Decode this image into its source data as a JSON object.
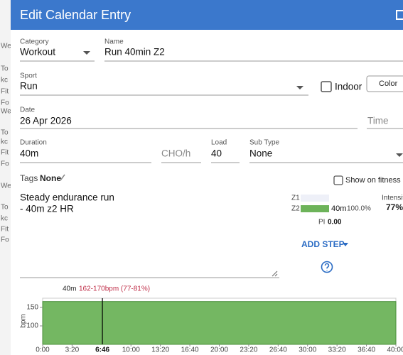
{
  "background": {
    "fragments": [
      "We",
      "To",
      "kc",
      "Fit",
      "Fo",
      "We",
      "To",
      "kc",
      "Fit",
      "Fo",
      "We",
      "To",
      "kc",
      "Fit",
      "Fo"
    ]
  },
  "dialog": {
    "title": "Edit Calendar Entry"
  },
  "form": {
    "category": {
      "label": "Category",
      "value": "Workout"
    },
    "name": {
      "label": "Name",
      "value": "Run 40min Z2"
    },
    "sport": {
      "label": "Sport",
      "value": "Run"
    },
    "indoor": {
      "label": "Indoor"
    },
    "color_button": "Color",
    "date": {
      "label": "Date",
      "value": "26 Apr 2026"
    },
    "time": {
      "placeholder": "Time"
    },
    "duration": {
      "label": "Duration",
      "value": "40m"
    },
    "cho": {
      "placeholder": "CHO/h"
    },
    "load": {
      "label": "Load",
      "value": "40"
    },
    "sub_type": {
      "label": "Sub Type",
      "value": "None"
    },
    "tags": {
      "label": "Tags",
      "value": "None"
    },
    "show_on_fitness": "Show on fitness lin",
    "description": [
      "Steady endurance run",
      "- 40m z2 HR"
    ]
  },
  "zones": {
    "rows": [
      {
        "name": "Z1"
      },
      {
        "name": "Z2",
        "time": "40m",
        "percent": "100.0%"
      }
    ],
    "pi_label": "PI",
    "pi_value": "0.00",
    "intensity_label": "Intensit",
    "intensity_value": "77%"
  },
  "add_step": "ADD STEP",
  "chart_data": {
    "type": "step",
    "annotation": {
      "duration": "40m",
      "target": "162-170bpm (77-81%)"
    },
    "y_label": "bpm",
    "xlim": [
      0,
      2400
    ],
    "ylim": [
      50,
      175
    ],
    "yticks": [
      100,
      150
    ],
    "xticks": [
      {
        "value": 0,
        "label": "0:00"
      },
      {
        "value": 200,
        "label": "3:20"
      },
      {
        "value": 600,
        "label": "10:00"
      },
      {
        "value": 800,
        "label": "13:20"
      },
      {
        "value": 1000,
        "label": "16:40"
      },
      {
        "value": 1200,
        "label": "20:00"
      },
      {
        "value": 1400,
        "label": "23:20"
      },
      {
        "value": 1600,
        "label": "26:40"
      },
      {
        "value": 1800,
        "label": "30:00"
      },
      {
        "value": 2000,
        "label": "33:20"
      },
      {
        "value": 2200,
        "label": "36:40"
      },
      {
        "value": 2400,
        "label": "40:00"
      }
    ],
    "cursor": {
      "value": 406,
      "label": "6:46"
    },
    "steps": [
      {
        "start": 0,
        "end": 2400,
        "value": 166
      }
    ],
    "color": "#6db35a"
  }
}
